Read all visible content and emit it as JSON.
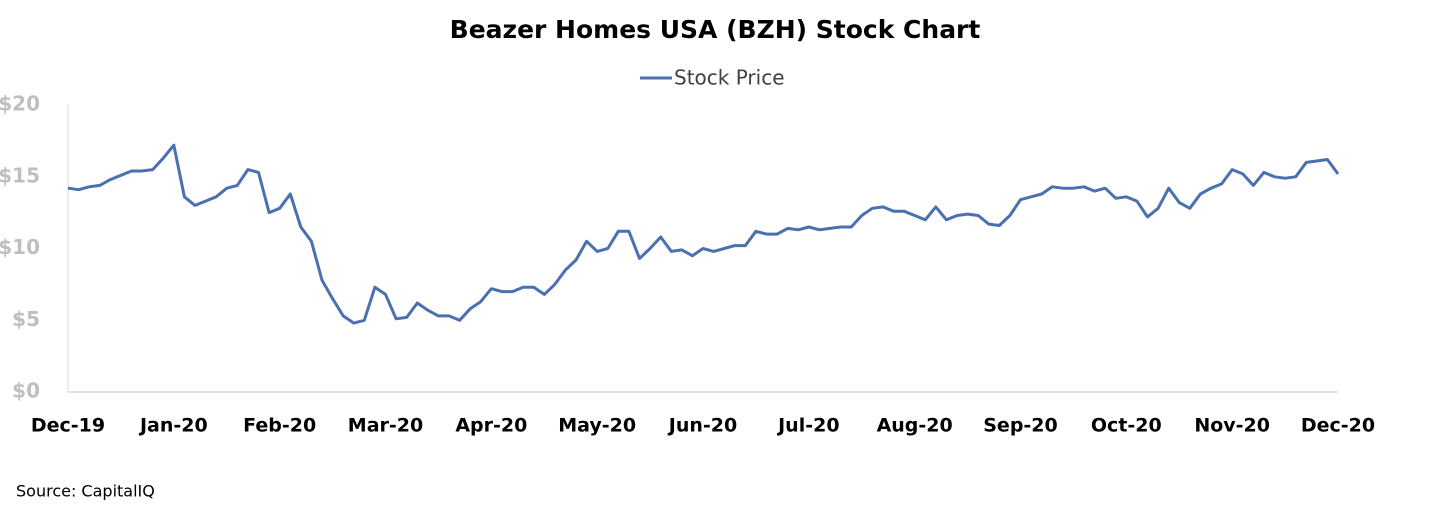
{
  "chart_data": {
    "type": "line",
    "title": "Beazer Homes USA (BZH) Stock Chart",
    "source": "Source: CapitalIQ",
    "legend": "top",
    "grid": false,
    "categories": [
      "Dec-19",
      null,
      null,
      null,
      null,
      null,
      null,
      null,
      null,
      null,
      "Jan-20",
      null,
      null,
      null,
      null,
      null,
      null,
      null,
      null,
      null,
      "Feb-20",
      null,
      null,
      null,
      null,
      null,
      null,
      null,
      null,
      null,
      "Mar-20",
      null,
      null,
      null,
      null,
      null,
      null,
      null,
      null,
      null,
      "Apr-20",
      null,
      null,
      null,
      null,
      null,
      null,
      null,
      null,
      null,
      "May-20",
      null,
      null,
      null,
      null,
      null,
      null,
      null,
      null,
      null,
      "Jun-20",
      null,
      null,
      null,
      null,
      null,
      null,
      null,
      null,
      null,
      "Jul-20",
      null,
      null,
      null,
      null,
      null,
      null,
      null,
      null,
      null,
      "Aug-20",
      null,
      null,
      null,
      null,
      null,
      null,
      null,
      null,
      null,
      "Sep-20",
      null,
      null,
      null,
      null,
      null,
      null,
      null,
      null,
      null,
      "Oct-20",
      null,
      null,
      null,
      null,
      null,
      null,
      null,
      null,
      null,
      "Nov-20",
      null,
      null,
      null,
      null,
      null,
      null,
      null,
      null,
      null,
      "Dec-20"
    ],
    "series": [
      {
        "name": "Stock Price",
        "color": "#4a70b0",
        "values": [
          14.2,
          14.1,
          14.3,
          14.4,
          14.8,
          15.1,
          15.4,
          15.4,
          15.5,
          16.3,
          17.2,
          13.6,
          13.0,
          13.3,
          13.6,
          14.2,
          14.4,
          15.5,
          15.3,
          12.5,
          12.8,
          13.8,
          11.5,
          10.5,
          7.8,
          6.5,
          5.3,
          4.8,
          5.0,
          7.3,
          6.8,
          5.1,
          5.2,
          6.2,
          5.7,
          5.3,
          5.3,
          5.0,
          5.8,
          6.3,
          7.2,
          7.0,
          7.0,
          7.3,
          7.3,
          6.8,
          7.5,
          8.5,
          9.2,
          10.5,
          9.8,
          10.0,
          11.2,
          11.2,
          9.3,
          10.0,
          10.8,
          9.8,
          9.9,
          9.5,
          10.0,
          9.8,
          10.0,
          10.2,
          10.2,
          11.2,
          11.0,
          11.0,
          11.4,
          11.3,
          11.5,
          11.3,
          11.4,
          11.5,
          11.5,
          12.3,
          12.8,
          12.9,
          12.6,
          12.6,
          12.3,
          12.0,
          12.9,
          12.0,
          12.3,
          12.4,
          12.3,
          11.7,
          11.6,
          12.3,
          13.4,
          13.6,
          13.8,
          14.3,
          14.2,
          14.2,
          14.3,
          14.0,
          14.2,
          13.5,
          13.6,
          13.3,
          12.2,
          12.8,
          14.2,
          13.2,
          12.8,
          13.8,
          14.2,
          14.5,
          15.5,
          15.2,
          14.4,
          15.3,
          15.0,
          14.9,
          15.0,
          16.0,
          16.1,
          16.2,
          15.2
        ]
      }
    ],
    "ylim": [
      0,
      20
    ],
    "yticks": [
      {
        "value": 0,
        "label": "$0"
      },
      {
        "value": 5,
        "label": "$5"
      },
      {
        "value": 10,
        "label": "$10"
      },
      {
        "value": 15,
        "label": "$15"
      },
      {
        "value": 20,
        "label": "$20"
      }
    ]
  }
}
